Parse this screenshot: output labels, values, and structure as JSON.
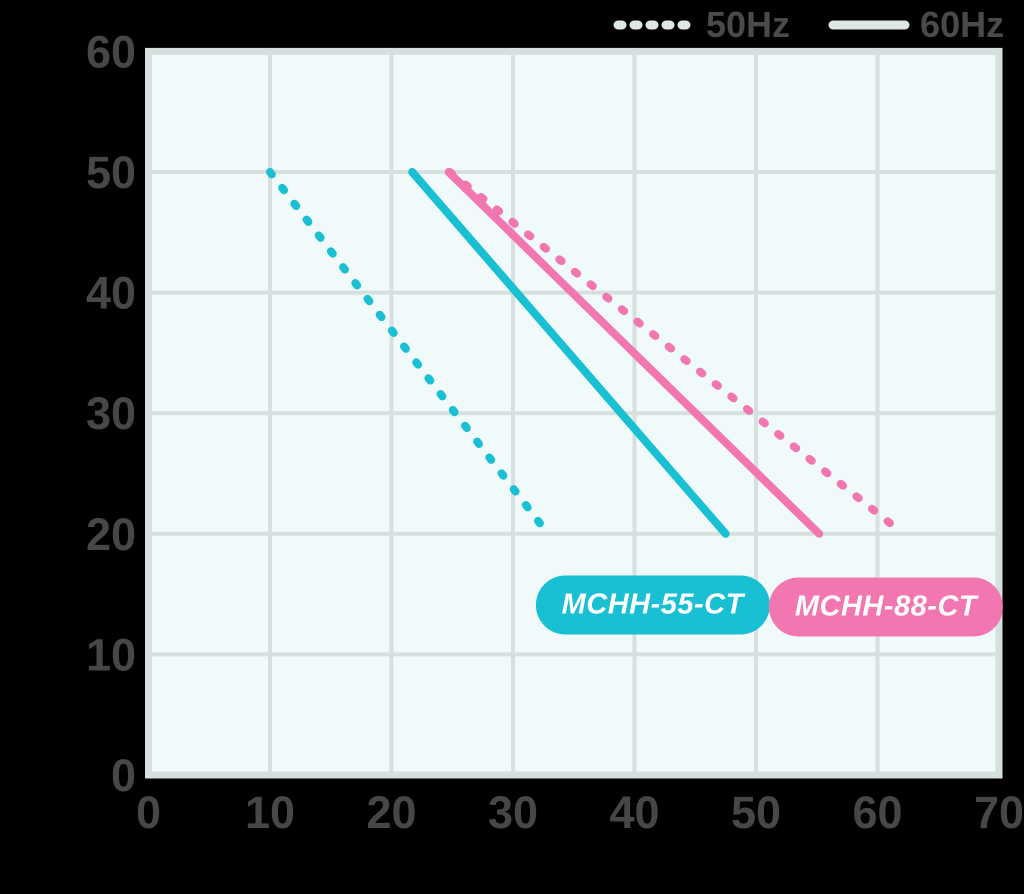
{
  "page": {
    "background": "#000000"
  },
  "chart_data": {
    "type": "line",
    "title": "",
    "xlabel": "",
    "ylabel": "",
    "xlim": [
      0,
      70
    ],
    "ylim": [
      0,
      60
    ],
    "xticks": [
      0,
      10,
      20,
      30,
      40,
      50,
      60,
      70
    ],
    "yticks": [
      0,
      10,
      20,
      30,
      40,
      50,
      60
    ],
    "grid": true,
    "plot_bg": "#f0fafa",
    "grid_color": "#d6e0de",
    "axis_text_color": "#474747",
    "legend_position": "top-right",
    "legend_text_color": "#4a4a4a",
    "legend_sample_color": "#dde7e5",
    "legend": [
      {
        "label": "50Hz",
        "style": "dotted"
      },
      {
        "label": "60Hz",
        "style": "solid"
      }
    ],
    "series": [
      {
        "name": "MCHH-55-CT 50Hz",
        "model": "MCHH-55-CT",
        "frequency": "50Hz",
        "style": "dotted",
        "color": "#19bfd3",
        "points": [
          [
            10,
            50
          ],
          [
            32.5,
            20.5
          ]
        ]
      },
      {
        "name": "MCHH-88-CT 50Hz",
        "model": "MCHH-88-CT",
        "frequency": "50Hz",
        "style": "dotted",
        "color": "#f277b1",
        "points": [
          [
            24.8,
            50
          ],
          [
            61.5,
            20.5
          ]
        ]
      },
      {
        "name": "MCHH-55-CT 60Hz",
        "model": "MCHH-55-CT",
        "frequency": "60Hz",
        "style": "solid",
        "color": "#19bfd3",
        "points": [
          [
            21.7,
            50
          ],
          [
            47.5,
            20
          ]
        ]
      },
      {
        "name": "MCHH-88-CT 60Hz",
        "model": "MCHH-88-CT",
        "frequency": "60Hz",
        "style": "solid",
        "color": "#f277b1",
        "points": [
          [
            24.7,
            50
          ],
          [
            55.2,
            20
          ]
        ]
      }
    ],
    "annotations": [
      {
        "text": "MCHH-55-CT",
        "color": "#19bfd3",
        "text_color": "#ffffff",
        "x": 41.5,
        "y": 14.1
      },
      {
        "text": "MCHH-88-CT",
        "color": "#f277b1",
        "text_color": "#ffffff",
        "x": 60.7,
        "y": 13.9
      }
    ]
  }
}
